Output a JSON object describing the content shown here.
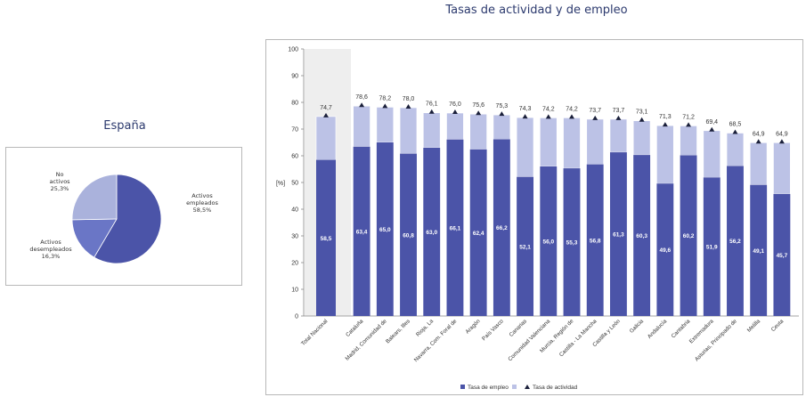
{
  "pie_title": "España",
  "main_title": "Tasas de actividad y de empleo",
  "colors": {
    "empleo": "#4b54a8",
    "actividad_band": "#bcc2e6",
    "desempleados": "#6a76c6",
    "no_activos": "#aab2dc",
    "marker": "#1a1f3a",
    "national_bg": "#eeeeee"
  },
  "chart_data": [
    {
      "type": "pie",
      "title": "España",
      "slices": [
        {
          "name": "Activos empleados",
          "value_label": "58,5%",
          "value": 58.5
        },
        {
          "name": "Activos desempleados",
          "value_label": "16,3%",
          "value": 16.3
        },
        {
          "name": "No activos",
          "value_label": "25,3%",
          "value": 25.3
        }
      ]
    },
    {
      "type": "bar",
      "title": "Tasas de actividad y de empleo",
      "ylabel": "[%]",
      "ylim": [
        0,
        100
      ],
      "yticks": [
        "0",
        "10",
        "20",
        "30",
        "40",
        "50",
        "60",
        "70",
        "80",
        "90",
        "100"
      ],
      "grid": false,
      "legend_position": "bottom",
      "legend": [
        "Tasa de empleo",
        "",
        "Tasa de actividad"
      ],
      "categories": [
        "Total Nacional",
        "Cataluña",
        "Madrid, Comunidad de",
        "Balears, Illes",
        "Rioja, La",
        "Navarra, Com. Foral de",
        "Aragón",
        "País Vasco",
        "Canarias",
        "Comunidad Valenciana",
        "Murcia, Región de",
        "Castilla - La Mancha",
        "Castilla y León",
        "Galicia",
        "Andalucía",
        "Cantabria",
        "Extremadura",
        "Asturias, Principado de",
        "Melilla",
        "Ceuta"
      ],
      "empleo": [
        58.5,
        63.4,
        65.0,
        60.8,
        63.0,
        66.1,
        62.4,
        66.2,
        52.1,
        56.0,
        55.3,
        56.8,
        61.3,
        60.3,
        49.6,
        60.2,
        51.9,
        56.2,
        49.1,
        45.7
      ],
      "empleo_labels": [
        "58,5",
        "63,4",
        "65,0",
        "60,8",
        "63,0",
        "66,1",
        "62,4",
        "66,2",
        "52,1",
        "56,0",
        "55,3",
        "56,8",
        "61,3",
        "60,3",
        "49,6",
        "60,2",
        "51,9",
        "56,2",
        "49,1",
        "45,7"
      ],
      "actividad": [
        74.7,
        78.6,
        78.2,
        78.0,
        76.1,
        76.0,
        75.6,
        75.3,
        74.3,
        74.2,
        74.2,
        73.7,
        73.7,
        73.1,
        71.3,
        71.2,
        69.4,
        68.5,
        64.9,
        64.9
      ],
      "actividad_labels": [
        "74,7",
        "78,6",
        "78,2",
        "78,0",
        "76,1",
        "76,0",
        "75,6",
        "75,3",
        "74,3",
        "74,2",
        "74,2",
        "73,7",
        "73,7",
        "73,1",
        "71,3",
        "71,2",
        "69,4",
        "68,5",
        "64,9",
        "64,9"
      ]
    }
  ]
}
